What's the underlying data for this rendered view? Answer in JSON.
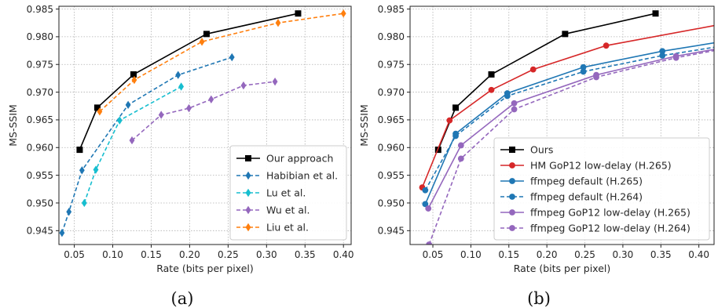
{
  "chart_data": [
    {
      "type": "line",
      "caption": "(a)",
      "xlabel": "Rate (bits per pixel)",
      "ylabel": "MS-SSIM",
      "xlim": [
        0.03,
        0.41
      ],
      "ylim": [
        0.9425,
        0.9855
      ],
      "xticks": [
        0.05,
        0.1,
        0.15,
        0.2,
        0.25,
        0.3,
        0.35,
        0.4
      ],
      "xtick_labels": [
        "0.05",
        "0.10",
        "0.15",
        "0.20",
        "0.25",
        "0.30",
        "0.35",
        "0.40"
      ],
      "yticks": [
        0.945,
        0.95,
        0.955,
        0.96,
        0.965,
        0.97,
        0.975,
        0.98,
        0.985
      ],
      "ytick_labels": [
        "0.945",
        "0.950",
        "0.955",
        "0.960",
        "0.965",
        "0.970",
        "0.975",
        "0.980",
        "0.985"
      ],
      "grid": true,
      "legend_position": "bottom-right",
      "series": [
        {
          "name": "Our approach",
          "color": "#000000",
          "marker": "square",
          "dash": "solid",
          "x": [
            0.057,
            0.08,
            0.127,
            0.222,
            0.341
          ],
          "y": [
            0.9596,
            0.9672,
            0.9732,
            0.9805,
            0.9842
          ]
        },
        {
          "name": "Habibian et al.",
          "color": "#1f77b4",
          "marker": "diamond",
          "dash": "dashed",
          "x": [
            0.034,
            0.043,
            0.06,
            0.12,
            0.185,
            0.255
          ],
          "y": [
            0.9446,
            0.9484,
            0.9559,
            0.9677,
            0.9731,
            0.9763
          ]
        },
        {
          "name": "Lu et al.",
          "color": "#17becf",
          "marker": "diamond",
          "dash": "dashed",
          "x": [
            0.063,
            0.078,
            0.109,
            0.189
          ],
          "y": [
            0.95,
            0.956,
            0.9649,
            0.971
          ]
        },
        {
          "name": "Wu et al.",
          "color": "#9467bd",
          "marker": "diamond",
          "dash": "dashed",
          "x": [
            0.125,
            0.163,
            0.199,
            0.228,
            0.27,
            0.311
          ],
          "y": [
            0.9613,
            0.9659,
            0.9671,
            0.9687,
            0.9712,
            0.9719
          ]
        },
        {
          "name": "Liu et al.",
          "color": "#ff7f0e",
          "marker": "diamond",
          "dash": "dashed",
          "x": [
            0.083,
            0.128,
            0.216,
            0.315,
            0.4
          ],
          "y": [
            0.9665,
            0.9722,
            0.9791,
            0.9825,
            0.9842
          ]
        }
      ]
    },
    {
      "type": "line",
      "caption": "(b)",
      "xlabel": "Rate (bits per pixel)",
      "ylabel": "MS-SSIM",
      "xlim": [
        0.02,
        0.42
      ],
      "ylim": [
        0.9425,
        0.9855
      ],
      "xticks": [
        0.05,
        0.1,
        0.15,
        0.2,
        0.25,
        0.3,
        0.35,
        0.4
      ],
      "xtick_labels": [
        "0.05",
        "0.10",
        "0.15",
        "0.20",
        "0.25",
        "0.30",
        "0.35",
        "0.40"
      ],
      "yticks": [
        0.945,
        0.95,
        0.955,
        0.96,
        0.965,
        0.97,
        0.975,
        0.98,
        0.985
      ],
      "ytick_labels": [
        "0.945",
        "0.950",
        "0.955",
        "0.960",
        "0.965",
        "0.970",
        "0.975",
        "0.980",
        "0.985"
      ],
      "grid": true,
      "legend_position": "bottom-right",
      "series": [
        {
          "name": "Ours",
          "color": "#000000",
          "marker": "square",
          "dash": "solid",
          "x": [
            0.057,
            0.08,
            0.127,
            0.224,
            0.343
          ],
          "y": [
            0.9596,
            0.9672,
            0.9732,
            0.9805,
            0.9842
          ]
        },
        {
          "name": "HM GoP12 low-delay (H.265)",
          "color": "#d62728",
          "marker": "circle",
          "dash": "solid",
          "x": [
            0.036,
            0.072,
            0.127,
            0.182,
            0.278,
            0.42
          ],
          "y": [
            0.9528,
            0.9649,
            0.9704,
            0.9741,
            0.9784,
            0.982
          ]
        },
        {
          "name": "ffmpeg default (H.265)",
          "color": "#1f77b4",
          "marker": "circle",
          "dash": "solid",
          "x": [
            0.04,
            0.08,
            0.148,
            0.248,
            0.352,
            0.42
          ],
          "y": [
            0.9498,
            0.9625,
            0.9698,
            0.9745,
            0.9774,
            0.9789
          ]
        },
        {
          "name": "ffmpeg default (H.264)",
          "color": "#1f77b4",
          "marker": "circle",
          "dash": "dashed",
          "x": [
            0.04,
            0.08,
            0.148,
            0.248,
            0.352,
            0.42
          ],
          "y": [
            0.9523,
            0.9621,
            0.9693,
            0.9737,
            0.9766,
            0.9781
          ]
        },
        {
          "name": "ffmpeg GoP12 low-delay (H.265)",
          "color": "#9467bd",
          "marker": "circle",
          "dash": "solid",
          "x": [
            0.044,
            0.087,
            0.157,
            0.265,
            0.37,
            0.42
          ],
          "y": [
            0.949,
            0.9604,
            0.968,
            0.9731,
            0.9765,
            0.9777
          ]
        },
        {
          "name": "ffmpeg GoP12 low-delay (H.264)",
          "color": "#9467bd",
          "marker": "dashed-circle",
          "dash": "dashed",
          "x": [
            0.045,
            0.087,
            0.157,
            0.265,
            0.37,
            0.42
          ],
          "y": [
            0.9425,
            0.958,
            0.9669,
            0.9727,
            0.9762,
            0.9775
          ]
        }
      ]
    }
  ]
}
